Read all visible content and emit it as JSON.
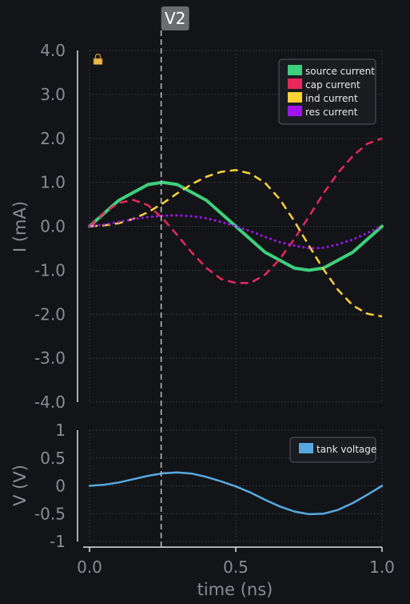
{
  "chart_data": [
    {
      "type": "line",
      "ylabel": "I (mA)",
      "ylim": [
        -4,
        4
      ],
      "y_ticks": [
        "4.0",
        "3.0",
        "2.0",
        "1.0",
        "0.0",
        "-1.0",
        "-2.0",
        "-3.0",
        "-4.0"
      ],
      "grid": true,
      "legend_position": "top-right",
      "locked": true,
      "series": [
        {
          "name": "source current",
          "color": "#3ecf7c",
          "style": "solid",
          "x": [
            0,
            0.1,
            0.2,
            0.25,
            0.3,
            0.4,
            0.5,
            0.6,
            0.7,
            0.75,
            0.8,
            0.9,
            1.0
          ],
          "y": [
            0,
            0.59,
            0.95,
            1.0,
            0.95,
            0.59,
            0,
            -0.59,
            -0.95,
            -1.0,
            -0.95,
            -0.59,
            0
          ]
        },
        {
          "name": "cap current",
          "color": "#e8285a",
          "style": "dashed",
          "x": [
            0,
            0.05,
            0.1,
            0.15,
            0.2,
            0.25,
            0.3,
            0.35,
            0.4,
            0.45,
            0.5,
            0.55,
            0.6,
            0.65,
            0.7,
            0.75,
            0.8,
            0.85,
            0.9,
            0.95,
            1.0
          ],
          "y": [
            0,
            0.31,
            0.53,
            0.6,
            0.48,
            0.18,
            -0.2,
            -0.6,
            -0.95,
            -1.2,
            -1.29,
            -1.29,
            -1.1,
            -0.75,
            -0.29,
            0.22,
            0.75,
            1.22,
            1.6,
            1.88,
            2.0
          ]
        },
        {
          "name": "ind current",
          "color": "#ffd333",
          "style": "dashed",
          "x": [
            0,
            0.05,
            0.1,
            0.15,
            0.2,
            0.25,
            0.3,
            0.35,
            0.4,
            0.45,
            0.5,
            0.55,
            0.6,
            0.65,
            0.7,
            0.75,
            0.8,
            0.85,
            0.9,
            0.95,
            1.0
          ],
          "y": [
            0,
            0.02,
            0.07,
            0.17,
            0.32,
            0.52,
            0.75,
            0.96,
            1.13,
            1.24,
            1.28,
            1.2,
            0.99,
            0.62,
            0.12,
            -0.44,
            -0.98,
            -1.45,
            -1.8,
            -1.99,
            -2.05
          ]
        },
        {
          "name": "res current",
          "color": "#a214ef",
          "style": "dotted",
          "x": [
            0,
            0.05,
            0.1,
            0.15,
            0.2,
            0.25,
            0.3,
            0.35,
            0.4,
            0.45,
            0.5,
            0.55,
            0.6,
            0.65,
            0.7,
            0.75,
            0.8,
            0.85,
            0.9,
            0.95,
            1.0
          ],
          "y": [
            0,
            0.04,
            0.1,
            0.16,
            0.21,
            0.24,
            0.25,
            0.23,
            0.18,
            0.1,
            0,
            -0.11,
            -0.24,
            -0.36,
            -0.44,
            -0.5,
            -0.49,
            -0.41,
            -0.3,
            -0.15,
            0
          ]
        }
      ]
    },
    {
      "type": "line",
      "ylabel": "V (V)",
      "xlabel": "time (ns)",
      "ylim": [
        -1,
        1
      ],
      "y_ticks": [
        "1",
        "0.5",
        "0",
        "-0.5",
        "-1"
      ],
      "x_ticks": [
        "0.0",
        "0.5",
        "1.0"
      ],
      "xlim": [
        0,
        1
      ],
      "grid": true,
      "legend_position": "top-right",
      "series": [
        {
          "name": "tank voltage",
          "color": "#56a9de",
          "style": "solid",
          "x": [
            0,
            0.05,
            0.1,
            0.15,
            0.2,
            0.25,
            0.3,
            0.35,
            0.4,
            0.45,
            0.5,
            0.55,
            0.6,
            0.65,
            0.7,
            0.75,
            0.8,
            0.85,
            0.9,
            0.95,
            1.0
          ],
          "y": [
            0,
            0.02,
            0.06,
            0.12,
            0.18,
            0.225,
            0.24,
            0.22,
            0.16,
            0.08,
            -0.01,
            -0.12,
            -0.25,
            -0.37,
            -0.46,
            -0.51,
            -0.5,
            -0.43,
            -0.31,
            -0.16,
            0
          ]
        }
      ]
    }
  ],
  "cursor": {
    "label": "V2",
    "x": 0.245,
    "color": "#bfc1c4",
    "label_bg": "#6a6c70"
  }
}
